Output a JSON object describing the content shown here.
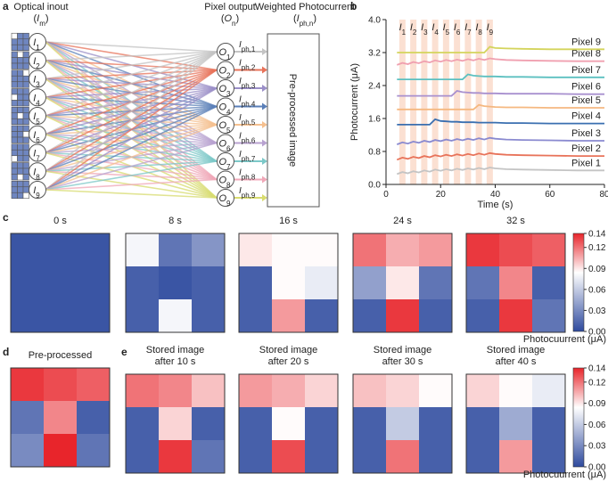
{
  "panel_a": {
    "panel_label": "a",
    "inputs_header": {
      "title": "Optical inout",
      "open": "(",
      "symbol": "I",
      "sub": "m",
      "close": ")"
    },
    "outputs_header": {
      "title": "Pixel output",
      "open": "(",
      "symbol": "O",
      "sub": "n",
      "close": ")"
    },
    "currents_header": {
      "title": "Weighted Photocurrent",
      "open": "(",
      "symbol": "I",
      "sub": "ph,n",
      "close": ")"
    },
    "inputs": {
      "symbol": "I",
      "subs": [
        "1",
        "2",
        "3",
        "4",
        "5",
        "6",
        "7",
        "8",
        "9"
      ]
    },
    "outputs": {
      "symbol": "O",
      "subs": [
        "1",
        "2",
        "3",
        "4",
        "5",
        "6",
        "7",
        "8",
        "9"
      ]
    },
    "currents": {
      "symbol": "I",
      "subs": [
        "ph,1",
        "ph,2",
        "ph,3",
        "ph,4",
        "ph,5",
        "ph,6",
        "ph,7",
        "ph,8",
        "ph,9"
      ]
    },
    "box_label": "Pre-processed image"
  },
  "panel_labels": [
    "c",
    "d",
    "e"
  ],
  "colorbars": [
    {
      "zlim": [
        0,
        0.14
      ],
      "ticks": [
        {
          "value": 0,
          "label": "0.00"
        },
        0.03,
        0.06,
        0.09,
        0.12,
        0.14
      ],
      "label": "Photocuurrent (μA)",
      "colormap": [
        "#2e4a9e",
        "#ffffff",
        "#e8252b"
      ]
    },
    {
      "zlim": [
        0,
        0.14
      ],
      "ticks": [
        {
          "value": 0,
          "label": "0.00"
        },
        0.03,
        0.06,
        0.09,
        0.12,
        0.14
      ],
      "label": "Photocuurrent (μA)",
      "colormap": [
        "#2e4a9e",
        "#ffffff",
        "#e8252b"
      ]
    }
  ],
  "chart_data": [
    {
      "type": "line",
      "panel_label": "b",
      "x_label": "Time (s)",
      "y_label": "Photocurrent (μA)",
      "xlim": [
        0,
        80
      ],
      "xticks": [
        0,
        20,
        40,
        60,
        80
      ],
      "ylim": [
        0,
        4
      ],
      "yticks": [
        {
          "value": 0,
          "label": "0.0"
        },
        0.8,
        1.6,
        2.4,
        3.2,
        {
          "value": 4,
          "label": "4.0"
        }
      ],
      "annotations": [
        {
          "x": 6,
          "symbol": "I",
          "sub": "1"
        },
        {
          "x": 10,
          "symbol": "I",
          "sub": "2"
        },
        {
          "x": 14,
          "symbol": "I",
          "sub": "3"
        },
        {
          "x": 18,
          "symbol": "I",
          "sub": "4"
        },
        {
          "x": 22,
          "symbol": "I",
          "sub": "5"
        },
        {
          "x": 26,
          "symbol": "I",
          "sub": "6"
        },
        {
          "x": 30,
          "symbol": "I",
          "sub": "7"
        },
        {
          "x": 34,
          "symbol": "I",
          "sub": "8"
        },
        {
          "x": 38,
          "symbol": "I",
          "sub": "9"
        }
      ],
      "x": [
        4,
        6,
        8,
        10,
        12,
        14,
        16,
        18,
        20,
        22,
        24,
        26,
        28,
        30,
        32,
        34,
        36,
        38,
        40,
        44,
        50,
        60,
        70,
        80
      ],
      "series": [
        {
          "name": "Pixel 1",
          "color": "#c4c4c4",
          "values": [
            0.25,
            0.3,
            0.27,
            0.32,
            0.29,
            0.34,
            0.31,
            0.36,
            0.33,
            0.37,
            0.34,
            0.38,
            0.35,
            0.39,
            0.36,
            0.4,
            0.37,
            0.41,
            0.39,
            0.37,
            0.36,
            0.35,
            0.34,
            0.34
          ]
        },
        {
          "name": "Pixel 2",
          "color": "#e8735a",
          "values": [
            0.6,
            0.65,
            0.62,
            0.67,
            0.64,
            0.69,
            0.66,
            0.71,
            0.68,
            0.72,
            0.69,
            0.73,
            0.7,
            0.74,
            0.71,
            0.75,
            0.72,
            0.76,
            0.74,
            0.72,
            0.71,
            0.7,
            0.69,
            0.69
          ]
        },
        {
          "name": "Pixel 3",
          "color": "#8a8ad0",
          "values": [
            0.97,
            1.02,
            0.99,
            1.04,
            1.01,
            1.06,
            1.03,
            1.08,
            1.05,
            1.09,
            1.06,
            1.1,
            1.07,
            1.11,
            1.08,
            1.12,
            1.09,
            1.13,
            1.11,
            1.09,
            1.08,
            1.07,
            1.06,
            1.06
          ]
        },
        {
          "name": "Pixel 4",
          "color": "#3a6fb0",
          "values": [
            1.45,
            1.45,
            1.45,
            1.45,
            1.45,
            1.45,
            1.45,
            1.58,
            1.54,
            1.53,
            1.52,
            1.52,
            1.51,
            1.51,
            1.51,
            1.5,
            1.5,
            1.5,
            1.5,
            1.49,
            1.49,
            1.48,
            1.48,
            1.48
          ]
        },
        {
          "name": "Pixel 5",
          "color": "#f5b880",
          "values": [
            1.82,
            1.82,
            1.82,
            1.82,
            1.82,
            1.82,
            1.82,
            1.82,
            1.82,
            1.82,
            1.82,
            1.82,
            1.82,
            1.82,
            1.82,
            1.93,
            1.9,
            1.89,
            1.88,
            1.87,
            1.87,
            1.86,
            1.86,
            1.86
          ]
        },
        {
          "name": "Pixel 6",
          "color": "#a890cf",
          "values": [
            2.15,
            2.15,
            2.15,
            2.15,
            2.15,
            2.15,
            2.15,
            2.15,
            2.15,
            2.15,
            2.15,
            2.27,
            2.24,
            2.23,
            2.22,
            2.22,
            2.21,
            2.21,
            2.21,
            2.2,
            2.2,
            2.2,
            2.19,
            2.19
          ]
        },
        {
          "name": "Pixel 7",
          "color": "#5cc0c0",
          "values": [
            2.55,
            2.55,
            2.55,
            2.55,
            2.55,
            2.55,
            2.55,
            2.55,
            2.55,
            2.55,
            2.55,
            2.55,
            2.55,
            2.67,
            2.64,
            2.63,
            2.62,
            2.62,
            2.62,
            2.61,
            2.61,
            2.6,
            2.6,
            2.6
          ]
        },
        {
          "name": "Pixel 8",
          "color": "#f0a0b0",
          "values": [
            2.9,
            2.95,
            2.92,
            2.97,
            2.94,
            2.99,
            2.96,
            3.01,
            2.98,
            3.02,
            2.99,
            3.03,
            3.0,
            3.04,
            3.01,
            3.05,
            3.02,
            3.06,
            3.04,
            3.02,
            3.01,
            3.0,
            2.99,
            2.99
          ]
        },
        {
          "name": "Pixel 9",
          "color": "#d4d45c",
          "values": [
            3.2,
            3.2,
            3.2,
            3.2,
            3.2,
            3.2,
            3.2,
            3.2,
            3.2,
            3.2,
            3.2,
            3.2,
            3.2,
            3.2,
            3.2,
            3.2,
            3.2,
            3.34,
            3.31,
            3.3,
            3.29,
            3.28,
            3.28,
            3.28
          ]
        }
      ]
    },
    {
      "type": "heatmap",
      "title": [
        "0 s"
      ],
      "values": [
        [
          0.005,
          0.005,
          0.005
        ],
        [
          0.005,
          0.005,
          0.005
        ],
        [
          0.005,
          0.005,
          0.005
        ]
      ]
    },
    {
      "type": "heatmap",
      "title": [
        "8 s"
      ],
      "values": [
        [
          0.08,
          0.02,
          0.035
        ],
        [
          0.01,
          0.005,
          0.01
        ],
        [
          0.01,
          0.08,
          0.01
        ]
      ]
    },
    {
      "type": "heatmap",
      "title": [
        "16 s"
      ],
      "values": [
        [
          0.09,
          0.085,
          0.085
        ],
        [
          0.01,
          0.085,
          0.075
        ],
        [
          0.01,
          0.11,
          0.01
        ]
      ]
    },
    {
      "type": "heatmap",
      "title": [
        "24 s"
      ],
      "values": [
        [
          0.12,
          0.105,
          0.11
        ],
        [
          0.04,
          0.09,
          0.02
        ],
        [
          0.01,
          0.135,
          0.01
        ]
      ]
    },
    {
      "type": "heatmap",
      "title": [
        "32 s"
      ],
      "values": [
        [
          0.135,
          0.13,
          0.125
        ],
        [
          0.02,
          0.115,
          0.01
        ],
        [
          0.01,
          0.135,
          0.02
        ]
      ]
    },
    {
      "type": "heatmap",
      "title": [
        "Pre-processed"
      ],
      "values": [
        [
          0.135,
          0.13,
          0.125
        ],
        [
          0.02,
          0.115,
          0.01
        ],
        [
          0.03,
          0.14,
          0.02
        ]
      ]
    },
    {
      "type": "heatmap",
      "title": [
        "Stored image",
        "after 10 s"
      ],
      "values": [
        [
          0.12,
          0.115,
          0.1
        ],
        [
          0.01,
          0.095,
          0.01
        ],
        [
          0.01,
          0.135,
          0.02
        ]
      ]
    },
    {
      "type": "heatmap",
      "title": [
        "Stored image",
        "after 20 s"
      ],
      "values": [
        [
          0.11,
          0.105,
          0.095
        ],
        [
          0.01,
          0.085,
          0.01
        ],
        [
          0.01,
          0.13,
          0.01
        ]
      ]
    },
    {
      "type": "heatmap",
      "title": [
        "Stored image",
        "after 30 s"
      ],
      "values": [
        [
          0.1,
          0.095,
          0.085
        ],
        [
          0.01,
          0.06,
          0.01
        ],
        [
          0.01,
          0.12,
          0.01
        ]
      ]
    },
    {
      "type": "heatmap",
      "title": [
        "Stored image",
        "after 40 s"
      ],
      "values": [
        [
          0.095,
          0.085,
          0.075
        ],
        [
          0.01,
          0.045,
          0.01
        ],
        [
          0.01,
          0.11,
          0.01
        ]
      ]
    }
  ]
}
